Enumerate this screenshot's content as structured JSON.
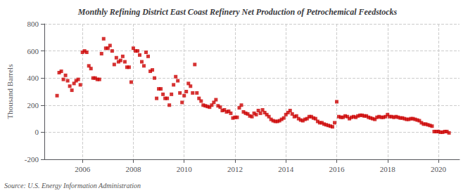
{
  "chart_data": {
    "type": "scatter",
    "title": "Monthly Refining District East Coast Refinery Net Production of Petrochemical Feedstocks",
    "ylabel": "Thousand Barrels",
    "annotation": "Source: U.S. Energy Information Administration",
    "color": "#CC0000",
    "marker": "square",
    "grid": true,
    "xlim": [
      2004.5,
      2020.83
    ],
    "xticks": [
      2006,
      2008,
      2010,
      2012,
      2014,
      2016,
      2018,
      2020
    ],
    "ylim": [
      -200,
      800
    ],
    "yticks": [
      -200,
      0,
      200,
      400,
      600,
      800
    ],
    "x": [
      2005.0,
      2005.083,
      2005.167,
      2005.25,
      2005.333,
      2005.417,
      2005.5,
      2005.583,
      2005.667,
      2005.75,
      2005.833,
      2005.917,
      2006.0,
      2006.083,
      2006.167,
      2006.25,
      2006.333,
      2006.417,
      2006.5,
      2006.583,
      2006.667,
      2006.75,
      2006.833,
      2006.917,
      2007.0,
      2007.083,
      2007.167,
      2007.25,
      2007.333,
      2007.417,
      2007.5,
      2007.583,
      2007.667,
      2007.75,
      2007.833,
      2007.917,
      2008.0,
      2008.083,
      2008.167,
      2008.25,
      2008.333,
      2008.417,
      2008.5,
      2008.583,
      2008.667,
      2008.75,
      2008.833,
      2008.917,
      2009.0,
      2009.083,
      2009.167,
      2009.25,
      2009.333,
      2009.417,
      2009.5,
      2009.583,
      2009.667,
      2009.75,
      2009.833,
      2009.917,
      2010.0,
      2010.083,
      2010.167,
      2010.25,
      2010.333,
      2010.417,
      2010.5,
      2010.583,
      2010.667,
      2010.75,
      2010.833,
      2010.917,
      2011.0,
      2011.083,
      2011.167,
      2011.25,
      2011.333,
      2011.417,
      2011.5,
      2011.583,
      2011.667,
      2011.75,
      2011.833,
      2011.917,
      2012.0,
      2012.083,
      2012.167,
      2012.25,
      2012.333,
      2012.417,
      2012.5,
      2012.583,
      2012.667,
      2012.75,
      2012.833,
      2012.917,
      2013.0,
      2013.083,
      2013.167,
      2013.25,
      2013.333,
      2013.417,
      2013.5,
      2013.583,
      2013.667,
      2013.75,
      2013.833,
      2013.917,
      2014.0,
      2014.083,
      2014.167,
      2014.25,
      2014.333,
      2014.417,
      2014.5,
      2014.583,
      2014.667,
      2014.75,
      2014.833,
      2014.917,
      2015.0,
      2015.083,
      2015.167,
      2015.25,
      2015.333,
      2015.417,
      2015.5,
      2015.583,
      2015.667,
      2015.75,
      2015.833,
      2015.917,
      2016.0,
      2016.083,
      2016.167,
      2016.25,
      2016.333,
      2016.417,
      2016.5,
      2016.583,
      2016.667,
      2016.75,
      2016.833,
      2016.917,
      2017.0,
      2017.083,
      2017.167,
      2017.25,
      2017.333,
      2017.417,
      2017.5,
      2017.583,
      2017.667,
      2017.75,
      2017.833,
      2017.917,
      2018.0,
      2018.083,
      2018.167,
      2018.25,
      2018.333,
      2018.417,
      2018.5,
      2018.583,
      2018.667,
      2018.75,
      2018.833,
      2018.917,
      2019.0,
      2019.083,
      2019.167,
      2019.25,
      2019.333,
      2019.417,
      2019.5,
      2019.583,
      2019.667,
      2019.75,
      2019.833,
      2019.917,
      2020.0,
      2020.083,
      2020.167,
      2020.25,
      2020.333,
      2020.417
    ],
    "values": [
      270,
      440,
      450,
      390,
      420,
      380,
      340,
      310,
      360,
      380,
      390,
      350,
      590,
      600,
      590,
      490,
      470,
      400,
      400,
      390,
      390,
      580,
      690,
      620,
      620,
      640,
      600,
      500,
      550,
      520,
      530,
      560,
      520,
      480,
      480,
      370,
      620,
      600,
      600,
      570,
      520,
      490,
      590,
      560,
      450,
      460,
      400,
      250,
      320,
      320,
      280,
      250,
      250,
      200,
      280,
      350,
      410,
      380,
      290,
      220,
      270,
      300,
      360,
      340,
      290,
      500,
      290,
      250,
      230,
      200,
      195,
      190,
      185,
      200,
      220,
      240,
      195,
      185,
      160,
      165,
      150,
      155,
      140,
      105,
      110,
      110,
      180,
      200,
      150,
      140,
      135,
      120,
      115,
      140,
      130,
      160,
      140,
      165,
      145,
      130,
      115,
      95,
      85,
      80,
      80,
      85,
      95,
      105,
      130,
      145,
      160,
      135,
      115,
      120,
      100,
      90,
      85,
      95,
      100,
      115,
      115,
      105,
      100,
      80,
      70,
      70,
      60,
      55,
      50,
      45,
      40,
      70,
      225,
      115,
      110,
      110,
      120,
      115,
      100,
      110,
      115,
      110,
      120,
      125,
      125,
      120,
      120,
      110,
      105,
      100,
      95,
      110,
      115,
      110,
      110,
      115,
      130,
      115,
      115,
      110,
      115,
      110,
      105,
      105,
      100,
      95,
      95,
      100,
      100,
      95,
      90,
      85,
      70,
      60,
      60,
      55,
      50,
      45,
      5,
      5,
      5,
      0,
      0,
      5,
      5,
      -5
    ]
  }
}
